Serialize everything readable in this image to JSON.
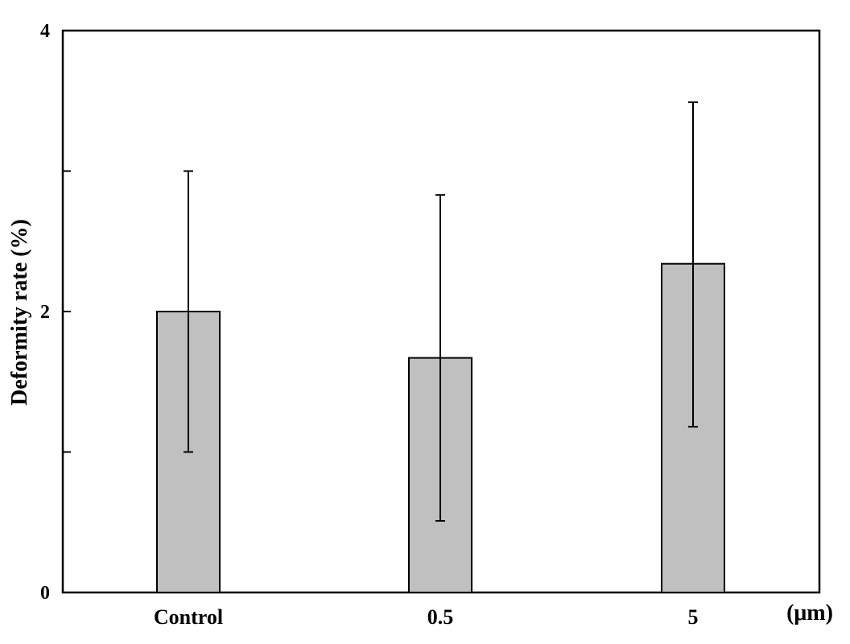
{
  "chart_data": {
    "type": "bar",
    "categories": [
      "Control",
      "0.5",
      "5"
    ],
    "values": [
      2.0,
      1.67,
      2.34
    ],
    "error_upper": [
      3.0,
      2.83,
      3.49
    ],
    "error_lower": [
      1.0,
      0.51,
      1.18
    ],
    "ylabel": "Deformity rate (%)",
    "x_unit": "(μm)",
    "ylim": [
      0,
      4
    ],
    "y_ticks": [
      0,
      1,
      2,
      3,
      4
    ],
    "y_tick_labels": [
      "0",
      "",
      "2",
      "",
      "4"
    ],
    "grid": false,
    "legend": "none",
    "colors": {
      "bar_fill": "#c0c0c0",
      "bar_stroke": "#000000",
      "axis": "#000000"
    }
  }
}
